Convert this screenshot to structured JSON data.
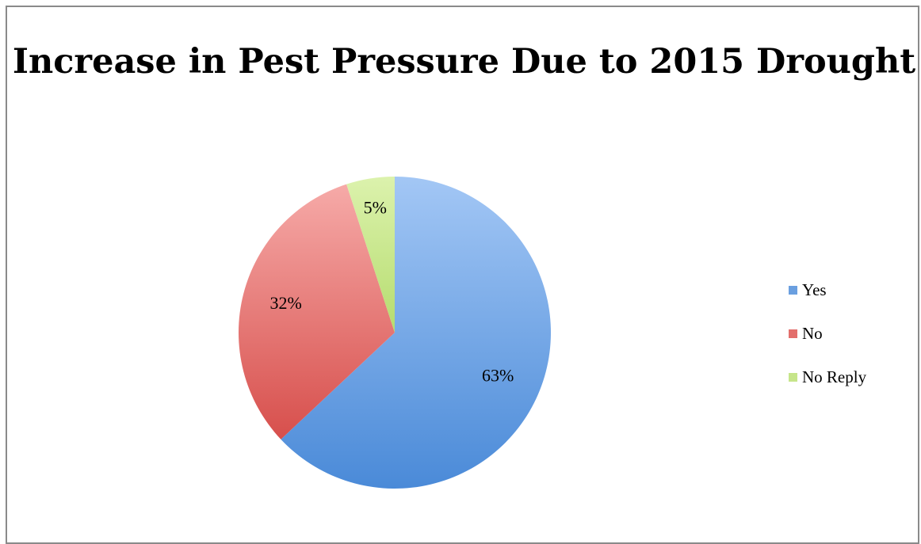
{
  "chart_data": {
    "type": "pie",
    "title": "Increase in Pest Pressure Due to 2015 Drought",
    "categories": [
      "Yes",
      "No",
      "No Reply"
    ],
    "values": [
      63,
      32,
      5
    ],
    "labels": [
      "63%",
      "32%",
      "5%"
    ],
    "colors": [
      "#6a9fe0",
      "#e36f6c",
      "#c6e58a"
    ],
    "legend_position": "right"
  }
}
